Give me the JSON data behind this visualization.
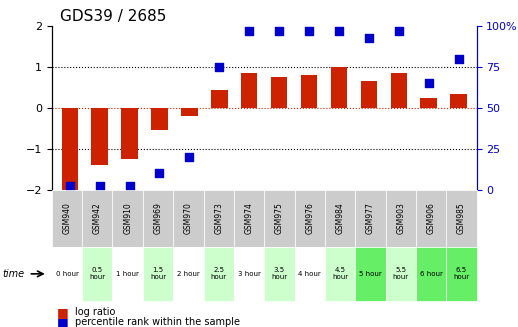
{
  "title": "GDS39 / 2685",
  "samples": [
    "GSM940",
    "GSM942",
    "GSM910",
    "GSM969",
    "GSM970",
    "GSM973",
    "GSM974",
    "GSM975",
    "GSM976",
    "GSM984",
    "GSM977",
    "GSM903",
    "GSM906",
    "GSM985"
  ],
  "time_labels": [
    "0 hour",
    "0.5\nhour",
    "1 hour",
    "1.5\nhour",
    "2 hour",
    "2.5\nhour",
    "3 hour",
    "3.5\nhour",
    "4 hour",
    "4.5\nhour",
    "5 hour",
    "5.5\nhour",
    "6 hour",
    "6.5\nhour"
  ],
  "log_ratio": [
    -2.0,
    -1.4,
    -1.25,
    -0.55,
    -0.2,
    0.45,
    0.85,
    0.75,
    0.8,
    1.0,
    0.65,
    0.85,
    0.25,
    0.35
  ],
  "percentile": [
    2,
    2,
    2,
    10,
    20,
    75,
    97,
    97,
    97,
    97,
    93,
    97,
    65,
    80
  ],
  "ylim": [
    -2,
    2
  ],
  "y2lim": [
    0,
    100
  ],
  "bar_color": "#cc2200",
  "dot_color": "#0000cc",
  "bg_color": "#ffffff",
  "time_colors": [
    "#ffffff",
    "#ccffcc",
    "#ffffff",
    "#ccffcc",
    "#ffffff",
    "#ccffcc",
    "#ffffff",
    "#ccffcc",
    "#ffffff",
    "#ccffcc",
    "#66ee66",
    "#ccffcc",
    "#66ee66",
    "#66ee66"
  ],
  "gsm_row_color": "#cccccc"
}
